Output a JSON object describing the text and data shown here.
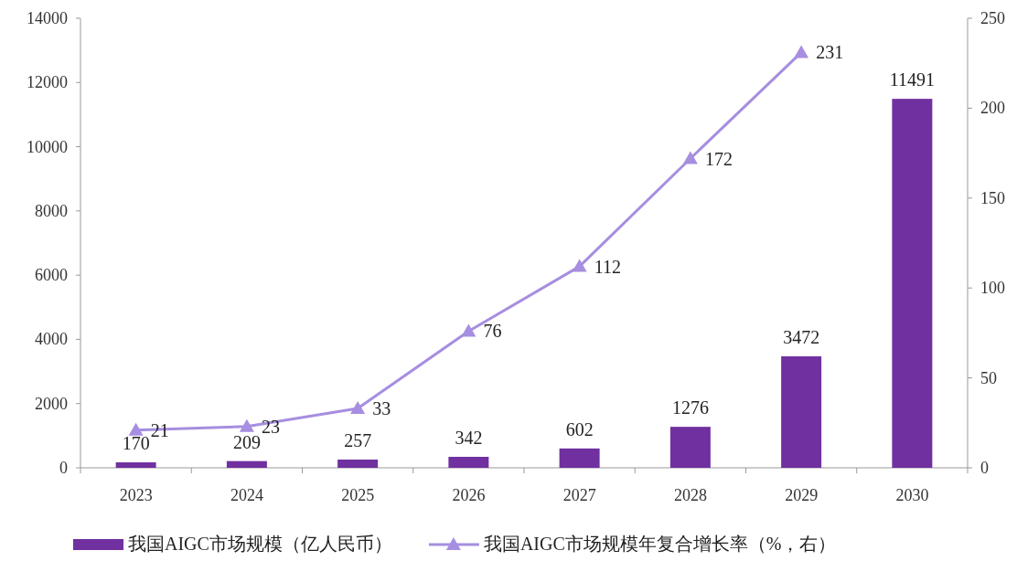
{
  "chart_data": {
    "type": "bar",
    "categories": [
      "2023",
      "2024",
      "2025",
      "2026",
      "2027",
      "2028",
      "2029",
      "2030"
    ],
    "series": [
      {
        "name": "我国AIGC市场规模（亿人民币）",
        "color": "#7030a0",
        "values": [
          170,
          209,
          257,
          342,
          602,
          1276,
          3472,
          11491
        ]
      },
      {
        "name": "我国AIGC市场规模年复合增长率（%，右）",
        "type": "line",
        "axis": "y2",
        "color": "#a68ee0",
        "values": [
          21,
          23,
          33,
          76,
          112,
          172,
          231,
          null
        ]
      }
    ],
    "ylim": [
      0,
      14000
    ],
    "yticks": [
      0,
      2000,
      4000,
      6000,
      8000,
      10000,
      12000,
      14000
    ],
    "y2lim": [
      0,
      250
    ],
    "y2ticks": [
      0,
      50,
      100,
      150,
      200,
      250
    ],
    "data_labels": true,
    "legend": "bottom",
    "marker": "triangle",
    "grid": false
  }
}
